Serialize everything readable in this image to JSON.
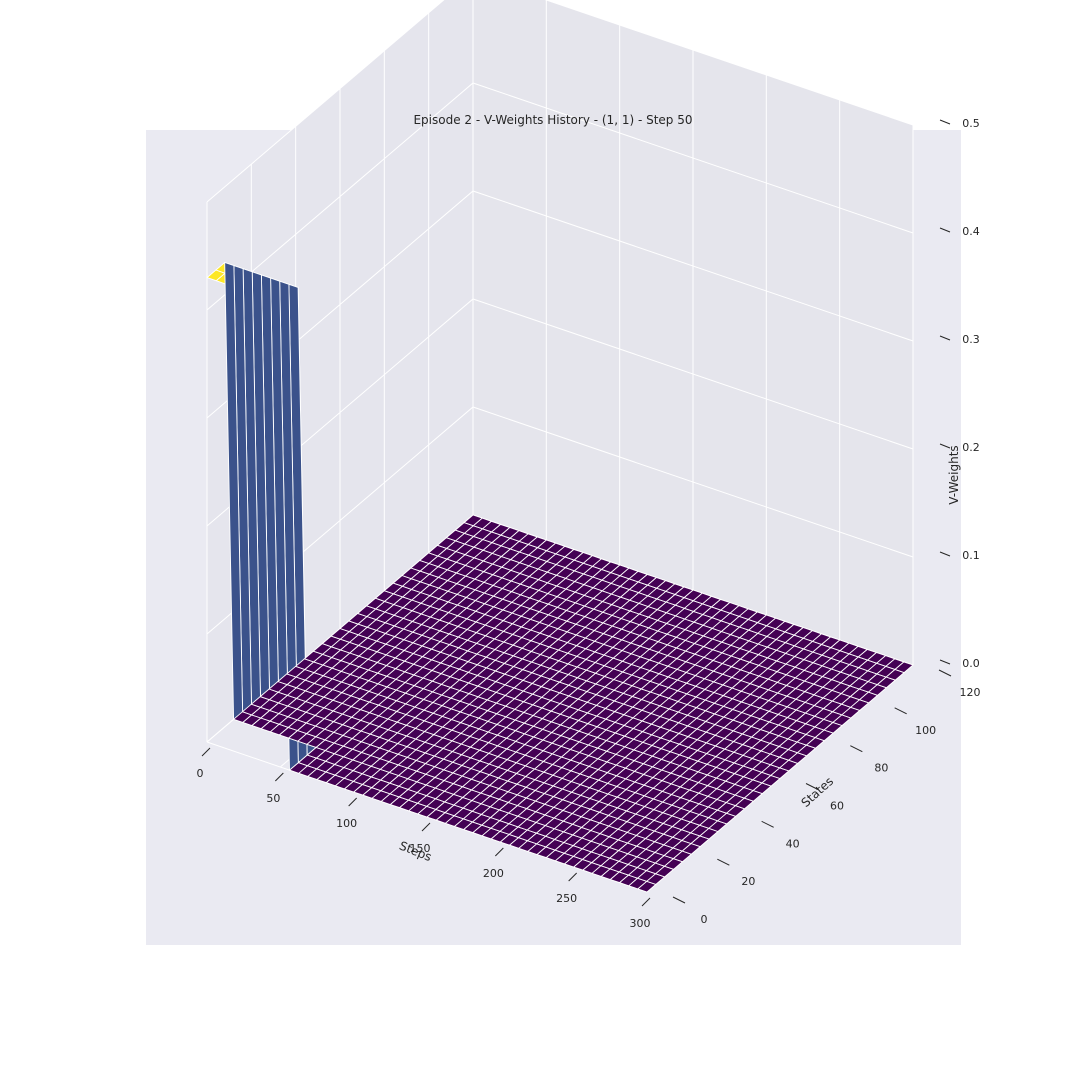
{
  "chart_data": {
    "type": "surface3d",
    "title": "Episode 2 - V-Weights History - (1, 1) - Step 50",
    "xlabel": "Steps",
    "ylabel": "States",
    "zlabel": "V-Weights",
    "xlim": [
      0,
      300
    ],
    "ylim": [
      0,
      120
    ],
    "zlim": [
      0,
      0.5
    ],
    "xticks": [
      "0",
      "50",
      "100",
      "150",
      "200",
      "250",
      "300"
    ],
    "yticks": [
      "0",
      "20",
      "40",
      "60",
      "80",
      "100",
      "120"
    ],
    "zticks": [
      "0.0",
      "0.1",
      "0.2",
      "0.3",
      "0.4",
      "0.5"
    ],
    "colormap": "viridis",
    "grid": true,
    "surface": {
      "steps_range": [
        0,
        300
      ],
      "states_range": [
        0,
        120
      ],
      "baseline_value": 0.0,
      "peak": {
        "steps_range": [
          0,
          50
        ],
        "states_range": [
          0,
          8
        ],
        "value": 0.43
      }
    },
    "colors": {
      "background": "#eaeaf2",
      "low": "#440154",
      "high": "#fde725",
      "mid": "#3b528b",
      "grid": "#ffffff"
    }
  }
}
